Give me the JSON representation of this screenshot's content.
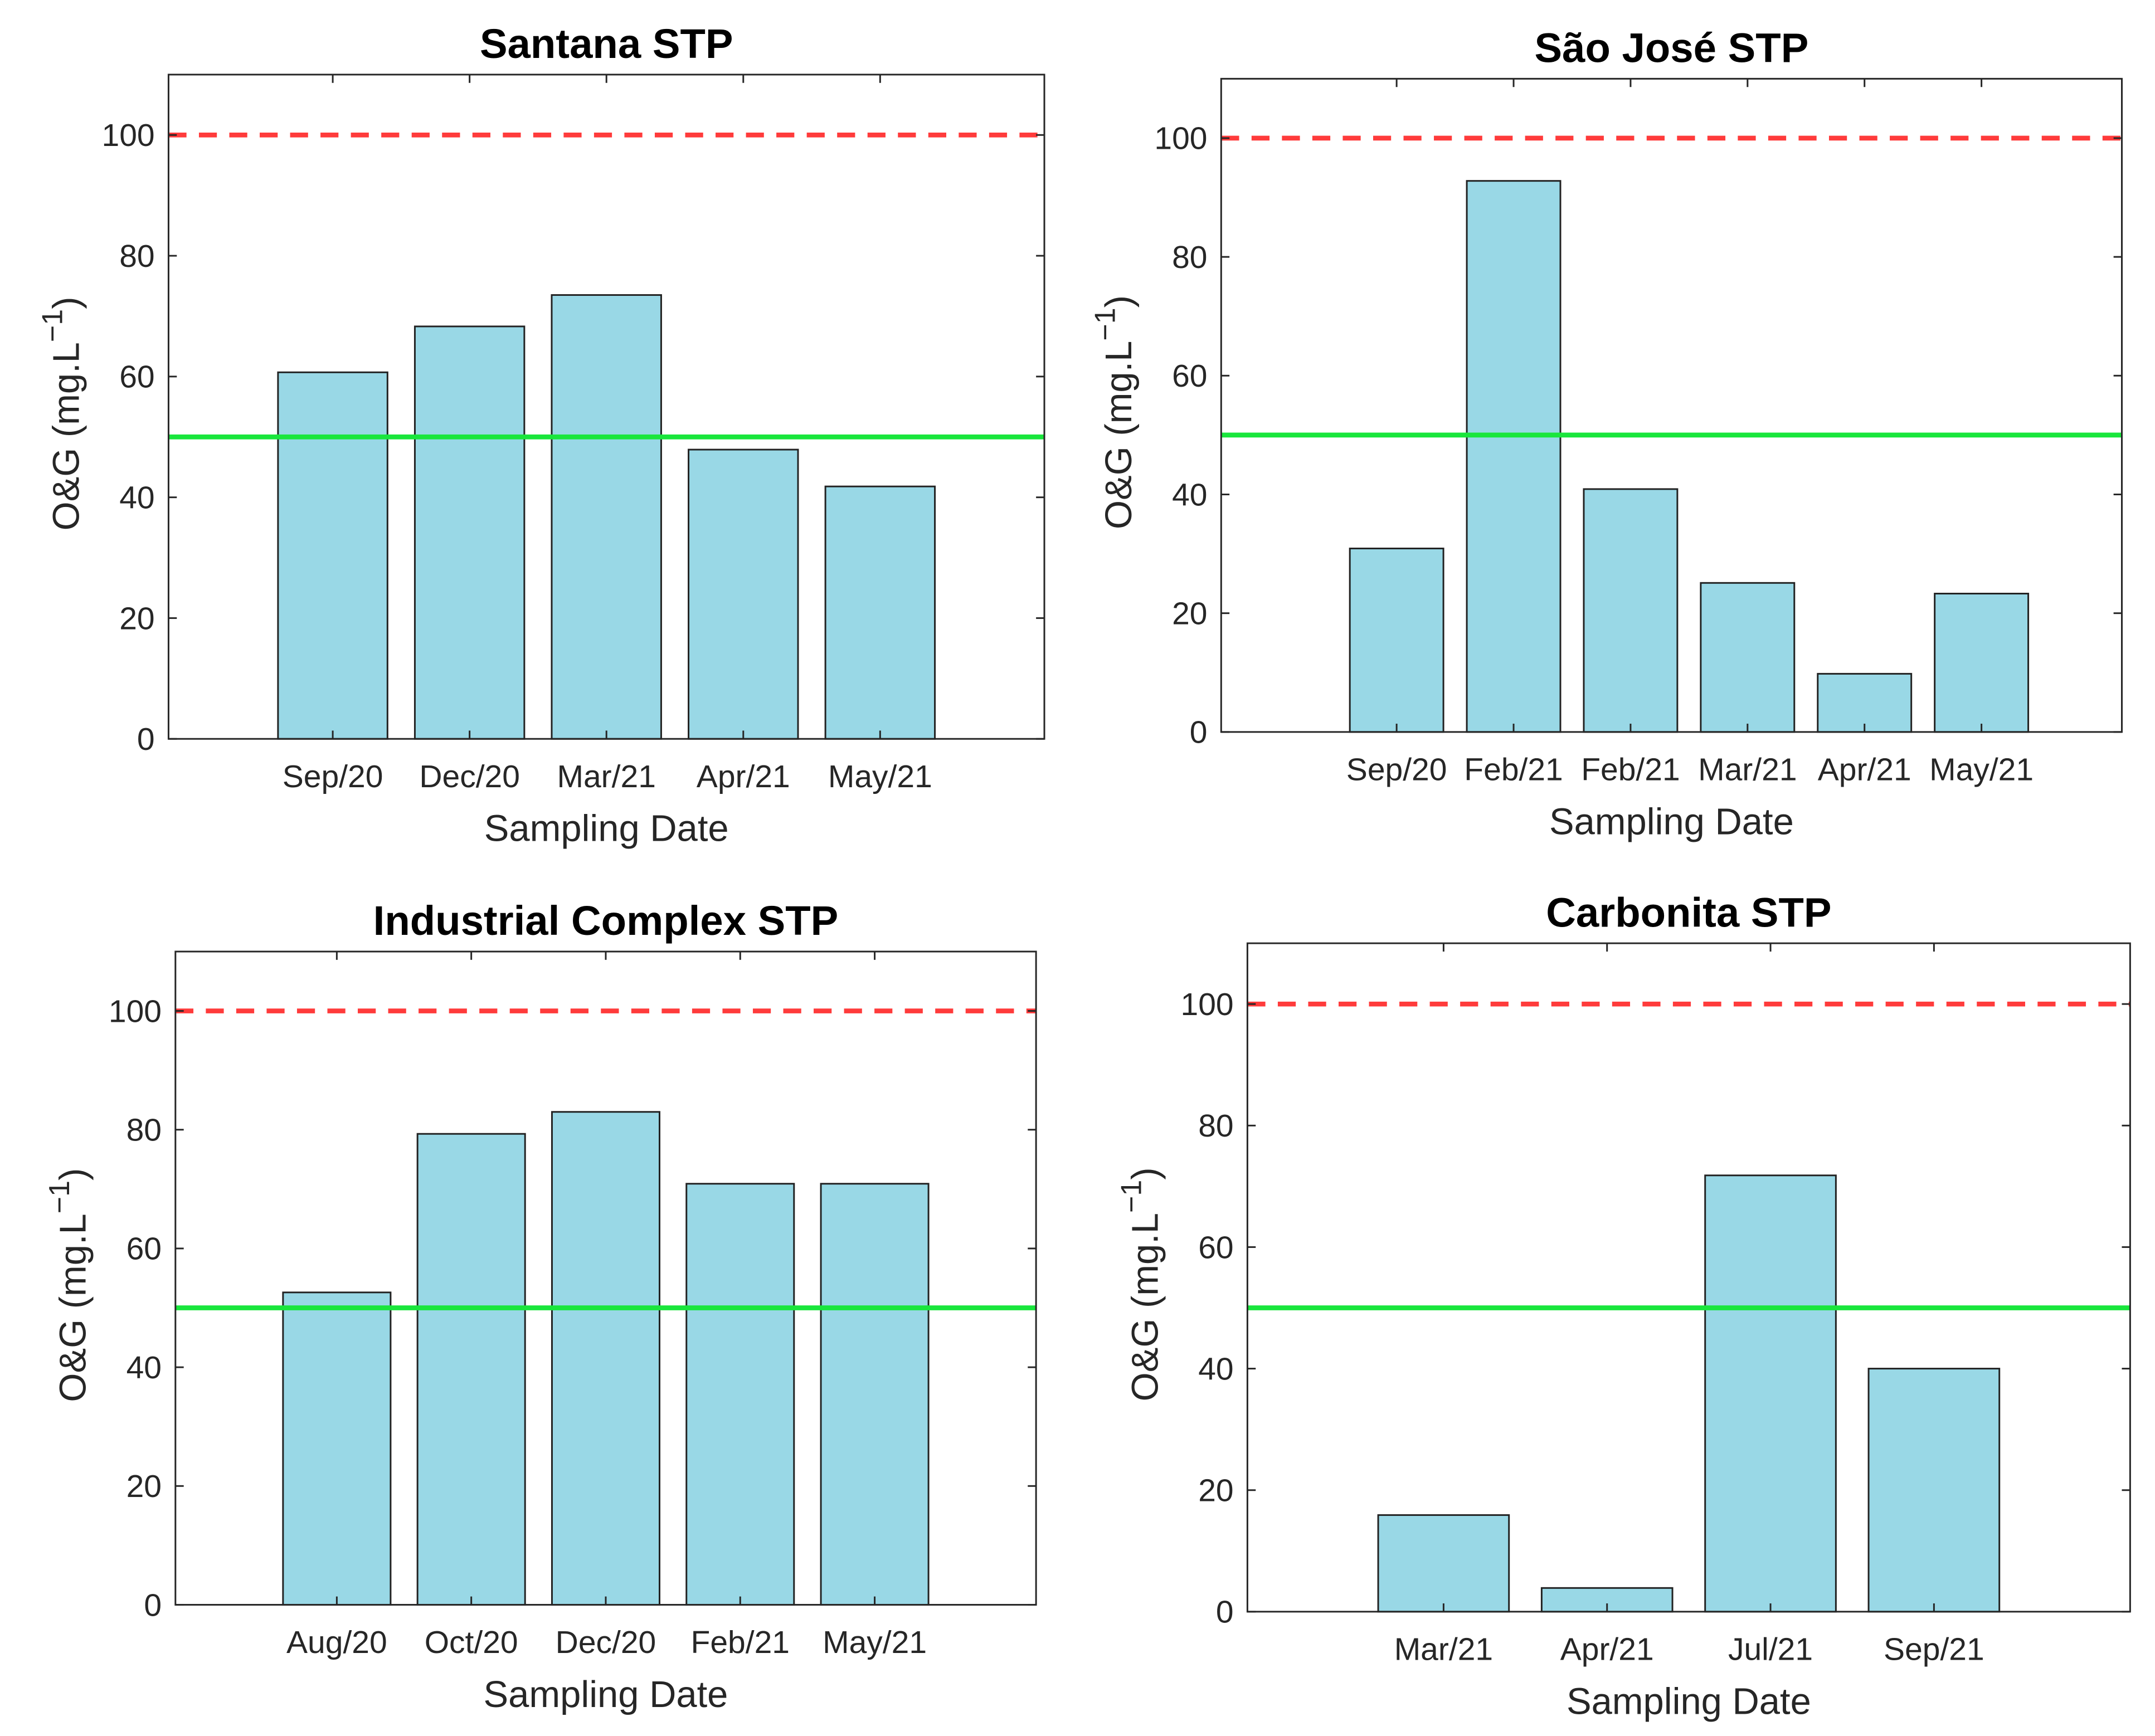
{
  "chart_data": [
    {
      "type": "bar",
      "title": "Santana STP",
      "xlabel": "Sampling Date",
      "ylabel": "O&G (mg.L",
      "ylabel_sup": "−1",
      "ylabel_close": ")",
      "categories": [
        "Sep/20",
        "Dec/20",
        "Mar/21",
        "Apr/21",
        "May/21"
      ],
      "values": [
        60.7,
        68.3,
        73.5,
        47.9,
        41.8
      ],
      "ylim": [
        0,
        110
      ],
      "xlim": [
        -0.2,
        6.2
      ],
      "yticks": [
        0,
        20,
        40,
        60,
        80,
        100
      ],
      "reference_lines": [
        {
          "value": 100,
          "style": "dashed",
          "color": "#ff3b3b"
        },
        {
          "value": 50,
          "style": "solid",
          "color": "#19e63c"
        }
      ],
      "bar_color": "#99d8e6",
      "grid": false
    },
    {
      "type": "bar",
      "title": "São José STP",
      "xlabel": "Sampling Date",
      "ylabel": "O&G (mg.L",
      "ylabel_sup": "−1",
      "ylabel_close": ")",
      "categories": [
        "Sep/20",
        "Feb/21",
        "Feb/21",
        "Mar/21",
        "Apr/21",
        "May/21"
      ],
      "values": [
        30.9,
        92.8,
        40.9,
        25.1,
        9.8,
        23.3
      ],
      "ylim": [
        0,
        110
      ],
      "xlim": [
        -0.5,
        7.2
      ],
      "yticks": [
        0,
        20,
        40,
        60,
        80,
        100
      ],
      "reference_lines": [
        {
          "value": 100,
          "style": "dashed",
          "color": "#ff3b3b"
        },
        {
          "value": 50,
          "style": "solid",
          "color": "#19e63c"
        }
      ],
      "bar_color": "#99d8e6",
      "grid": false
    },
    {
      "type": "bar",
      "title": "Industrial Complex STP",
      "xlabel": "Sampling Date",
      "ylabel": "O&G (mg.L",
      "ylabel_sup": "−1",
      "ylabel_close": ")",
      "categories": [
        "Aug/20",
        "Oct/20",
        "Dec/20",
        "Feb/21",
        "May/21"
      ],
      "values": [
        52.6,
        79.3,
        83.0,
        70.9,
        70.9
      ],
      "ylim": [
        0,
        110
      ],
      "xlim": [
        -0.2,
        6.2
      ],
      "yticks": [
        0,
        20,
        40,
        60,
        80,
        100
      ],
      "reference_lines": [
        {
          "value": 100,
          "style": "dashed",
          "color": "#ff3b3b"
        },
        {
          "value": 50,
          "style": "solid",
          "color": "#19e63c"
        }
      ],
      "bar_color": "#99d8e6",
      "grid": false
    },
    {
      "type": "bar",
      "title": "Carbonita STP",
      "xlabel": "Sampling Date",
      "ylabel": "O&G (mg.L",
      "ylabel_sup": "−1",
      "ylabel_close": ")",
      "categories": [
        "Mar/21",
        "Apr/21",
        "Jul/21",
        "Sep/21"
      ],
      "values": [
        15.9,
        3.9,
        71.8,
        40.0
      ],
      "ylim": [
        0,
        110
      ],
      "xlim": [
        -0.2,
        5.2
      ],
      "yticks": [
        0,
        20,
        40,
        60,
        80,
        100
      ],
      "reference_lines": [
        {
          "value": 100,
          "style": "dashed",
          "color": "#ff3b3b"
        },
        {
          "value": 50,
          "style": "solid",
          "color": "#19e63c"
        }
      ],
      "bar_color": "#99d8e6",
      "grid": false
    }
  ]
}
